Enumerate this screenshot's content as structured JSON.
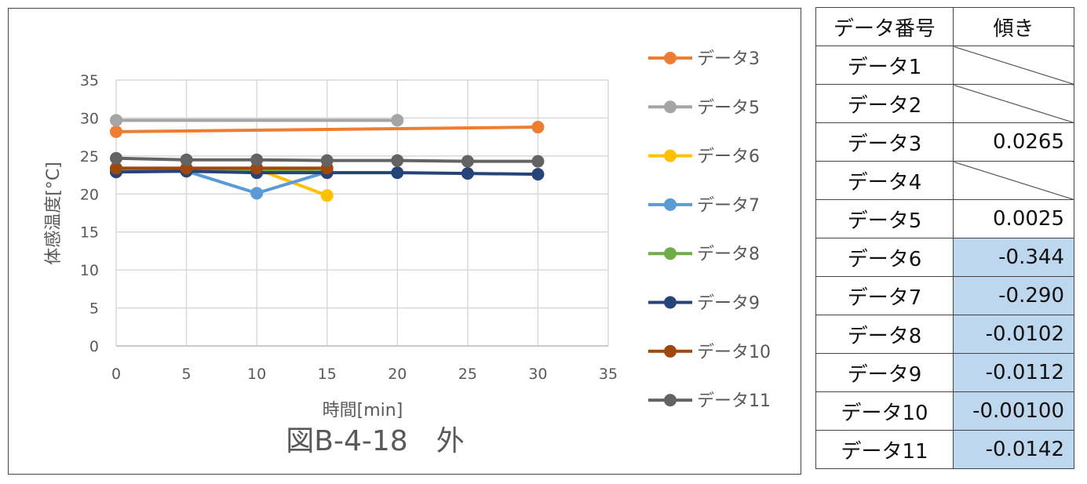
{
  "chart_data": {
    "type": "line",
    "title": "図B-4-18　外",
    "xlabel": "時間[min]",
    "ylabel": "体感温度[°C]",
    "xlim": [
      0,
      35
    ],
    "ylim": [
      0,
      35
    ],
    "xticks": [
      0,
      5,
      10,
      15,
      20,
      25,
      30,
      35
    ],
    "yticks": [
      0,
      5,
      10,
      15,
      20,
      25,
      30,
      35
    ],
    "grid": true,
    "legend": "right",
    "series": [
      {
        "name": "データ3",
        "color": "#ED7D31",
        "x": [
          0,
          30
        ],
        "y": [
          28.2,
          28.8
        ]
      },
      {
        "name": "データ5",
        "color": "#A5A5A5",
        "x": [
          0,
          20
        ],
        "y": [
          29.7,
          29.7
        ]
      },
      {
        "name": "データ6",
        "color": "#FFC000",
        "x": [
          0,
          5,
          10,
          15
        ],
        "y": [
          23.3,
          23.3,
          23.3,
          19.8
        ]
      },
      {
        "name": "データ7",
        "color": "#5B9BD5",
        "x": [
          0,
          5,
          10,
          15
        ],
        "y": [
          23.0,
          23.0,
          20.1,
          22.9
        ]
      },
      {
        "name": "データ8",
        "color": "#70AD47",
        "x": [
          0,
          5,
          10,
          15
        ],
        "y": [
          23.1,
          23.1,
          23.1,
          23.0
        ]
      },
      {
        "name": "データ9",
        "color": "#264478",
        "x": [
          0,
          5,
          10,
          15,
          20,
          25,
          30
        ],
        "y": [
          22.9,
          23.0,
          22.8,
          22.8,
          22.8,
          22.7,
          22.6
        ]
      },
      {
        "name": "データ10",
        "color": "#9E480E",
        "x": [
          0,
          5,
          10,
          15
        ],
        "y": [
          23.4,
          23.4,
          23.4,
          23.4
        ]
      },
      {
        "name": "データ11",
        "color": "#636363",
        "x": [
          0,
          5,
          10,
          15,
          20,
          25,
          30
        ],
        "y": [
          24.7,
          24.5,
          24.5,
          24.4,
          24.4,
          24.3,
          24.3
        ]
      }
    ]
  },
  "table": {
    "headers": [
      "データ番号",
      "傾き"
    ],
    "rows": [
      {
        "name": "データ1",
        "value": null,
        "hl": false
      },
      {
        "name": "データ2",
        "value": null,
        "hl": false
      },
      {
        "name": "データ3",
        "value": "0.0265",
        "hl": false
      },
      {
        "name": "データ4",
        "value": null,
        "hl": false
      },
      {
        "name": "データ5",
        "value": "0.0025",
        "hl": false
      },
      {
        "name": "データ6",
        "value": "-0.344",
        "hl": true
      },
      {
        "name": "データ7",
        "value": "-0.290",
        "hl": true
      },
      {
        "name": "データ8",
        "value": "-0.0102",
        "hl": true
      },
      {
        "name": "データ9",
        "value": "-0.0112",
        "hl": true
      },
      {
        "name": "データ10",
        "value": "-0.00100",
        "hl": true
      },
      {
        "name": "データ11",
        "value": "-0.0142",
        "hl": true
      }
    ]
  }
}
